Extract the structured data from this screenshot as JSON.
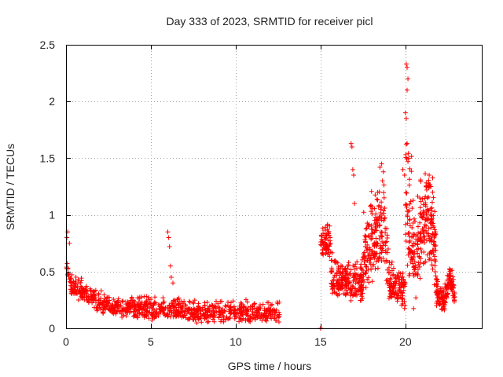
{
  "chart_data": {
    "type": "scatter",
    "title": "Day 333 of 2023, SRMTID for receiver picl",
    "xlabel": "GPS time / hours",
    "ylabel": "SRMTID / TECUs",
    "xlim": [
      0,
      24.5
    ],
    "ylim": [
      0,
      2.5
    ],
    "xticks": [
      0,
      5,
      10,
      15,
      20
    ],
    "xtick_labels": [
      "0",
      "5",
      "10",
      "15",
      "20"
    ],
    "yticks": [
      0,
      0.5,
      1,
      1.5,
      2,
      2.5
    ],
    "ytick_labels": [
      "0",
      "0.5",
      "1",
      "1.5",
      "2",
      "2.5"
    ],
    "grid": true,
    "marker": "+",
    "colors": {
      "series": "#ff0000",
      "axis": "#000000",
      "grid": "#a0a0a0"
    },
    "series": [
      {
        "name": "SRMTID",
        "segments": [
          {
            "t_start": 0.0,
            "t_end": 12.6,
            "n": 900,
            "base": [
              [
                0,
                0.55
              ],
              [
                0.3,
                0.35
              ],
              [
                1,
                0.3
              ],
              [
                2,
                0.2
              ],
              [
                3,
                0.17
              ],
              [
                5,
                0.15
              ],
              [
                8,
                0.12
              ],
              [
                12.6,
                0.12
              ]
            ],
            "spread": 0.08
          },
          {
            "t_start": 15.0,
            "t_end": 15.6,
            "n": 70,
            "base": [
              [
                15,
                0.7
              ],
              [
                15.6,
                0.75
              ]
            ],
            "spread": 0.12
          },
          {
            "t_start": 15.6,
            "t_end": 17.5,
            "n": 220,
            "base": [
              [
                15.6,
                0.4
              ],
              [
                17.5,
                0.35
              ]
            ],
            "spread": 0.15
          },
          {
            "t_start": 17.5,
            "t_end": 19.0,
            "n": 200,
            "base": [
              [
                17.5,
                0.55
              ],
              [
                18.7,
                0.85
              ],
              [
                19,
                0.5
              ]
            ],
            "spread": 0.3
          },
          {
            "t_start": 19.0,
            "t_end": 20.0,
            "n": 120,
            "base": [
              [
                19,
                0.35
              ],
              [
                20,
                0.3
              ]
            ],
            "spread": 0.15
          },
          {
            "t_start": 20.0,
            "t_end": 20.5,
            "n": 70,
            "base": [
              [
                20,
                1.0
              ],
              [
                20.5,
                0.6
              ]
            ],
            "spread": 0.5
          },
          {
            "t_start": 20.5,
            "t_end": 21.8,
            "n": 200,
            "base": [
              [
                20.5,
                0.5
              ],
              [
                21.2,
                0.9
              ],
              [
                21.8,
                0.6
              ]
            ],
            "spread": 0.35
          },
          {
            "t_start": 21.8,
            "t_end": 22.9,
            "n": 150,
            "base": [
              [
                21.8,
                0.3
              ],
              [
                22.3,
                0.2
              ],
              [
                22.6,
                0.45
              ],
              [
                22.9,
                0.25
              ]
            ],
            "spread": 0.1
          }
        ],
        "isolated_points": [
          [
            15.0,
            0.0
          ],
          [
            0.1,
            0.85
          ],
          [
            0.05,
            0.8
          ],
          [
            0.2,
            0.75
          ],
          [
            6.0,
            0.85
          ],
          [
            6.05,
            0.8
          ],
          [
            6.1,
            0.72
          ],
          [
            6.15,
            0.55
          ],
          [
            6.2,
            0.45
          ],
          [
            6.3,
            0.4
          ],
          [
            16.8,
            1.63
          ],
          [
            16.85,
            1.6
          ],
          [
            16.9,
            1.4
          ],
          [
            16.95,
            1.35
          ],
          [
            17.0,
            1.1
          ],
          [
            18.5,
            1.42
          ],
          [
            18.6,
            1.45
          ],
          [
            18.7,
            1.38
          ],
          [
            18.65,
            1.3
          ],
          [
            20.05,
            2.33
          ],
          [
            20.1,
            2.3
          ],
          [
            20.15,
            2.2
          ],
          [
            20.1,
            2.1
          ],
          [
            20.0,
            1.9
          ],
          [
            20.05,
            1.85
          ],
          [
            20.1,
            1.63
          ],
          [
            20.15,
            1.47
          ],
          [
            20.2,
            1.5
          ],
          [
            19.85,
            1.4
          ],
          [
            19.95,
            1.35
          ],
          [
            21.4,
            1.35
          ],
          [
            21.5,
            1.25
          ],
          [
            21.6,
            1.2
          ]
        ]
      }
    ]
  }
}
